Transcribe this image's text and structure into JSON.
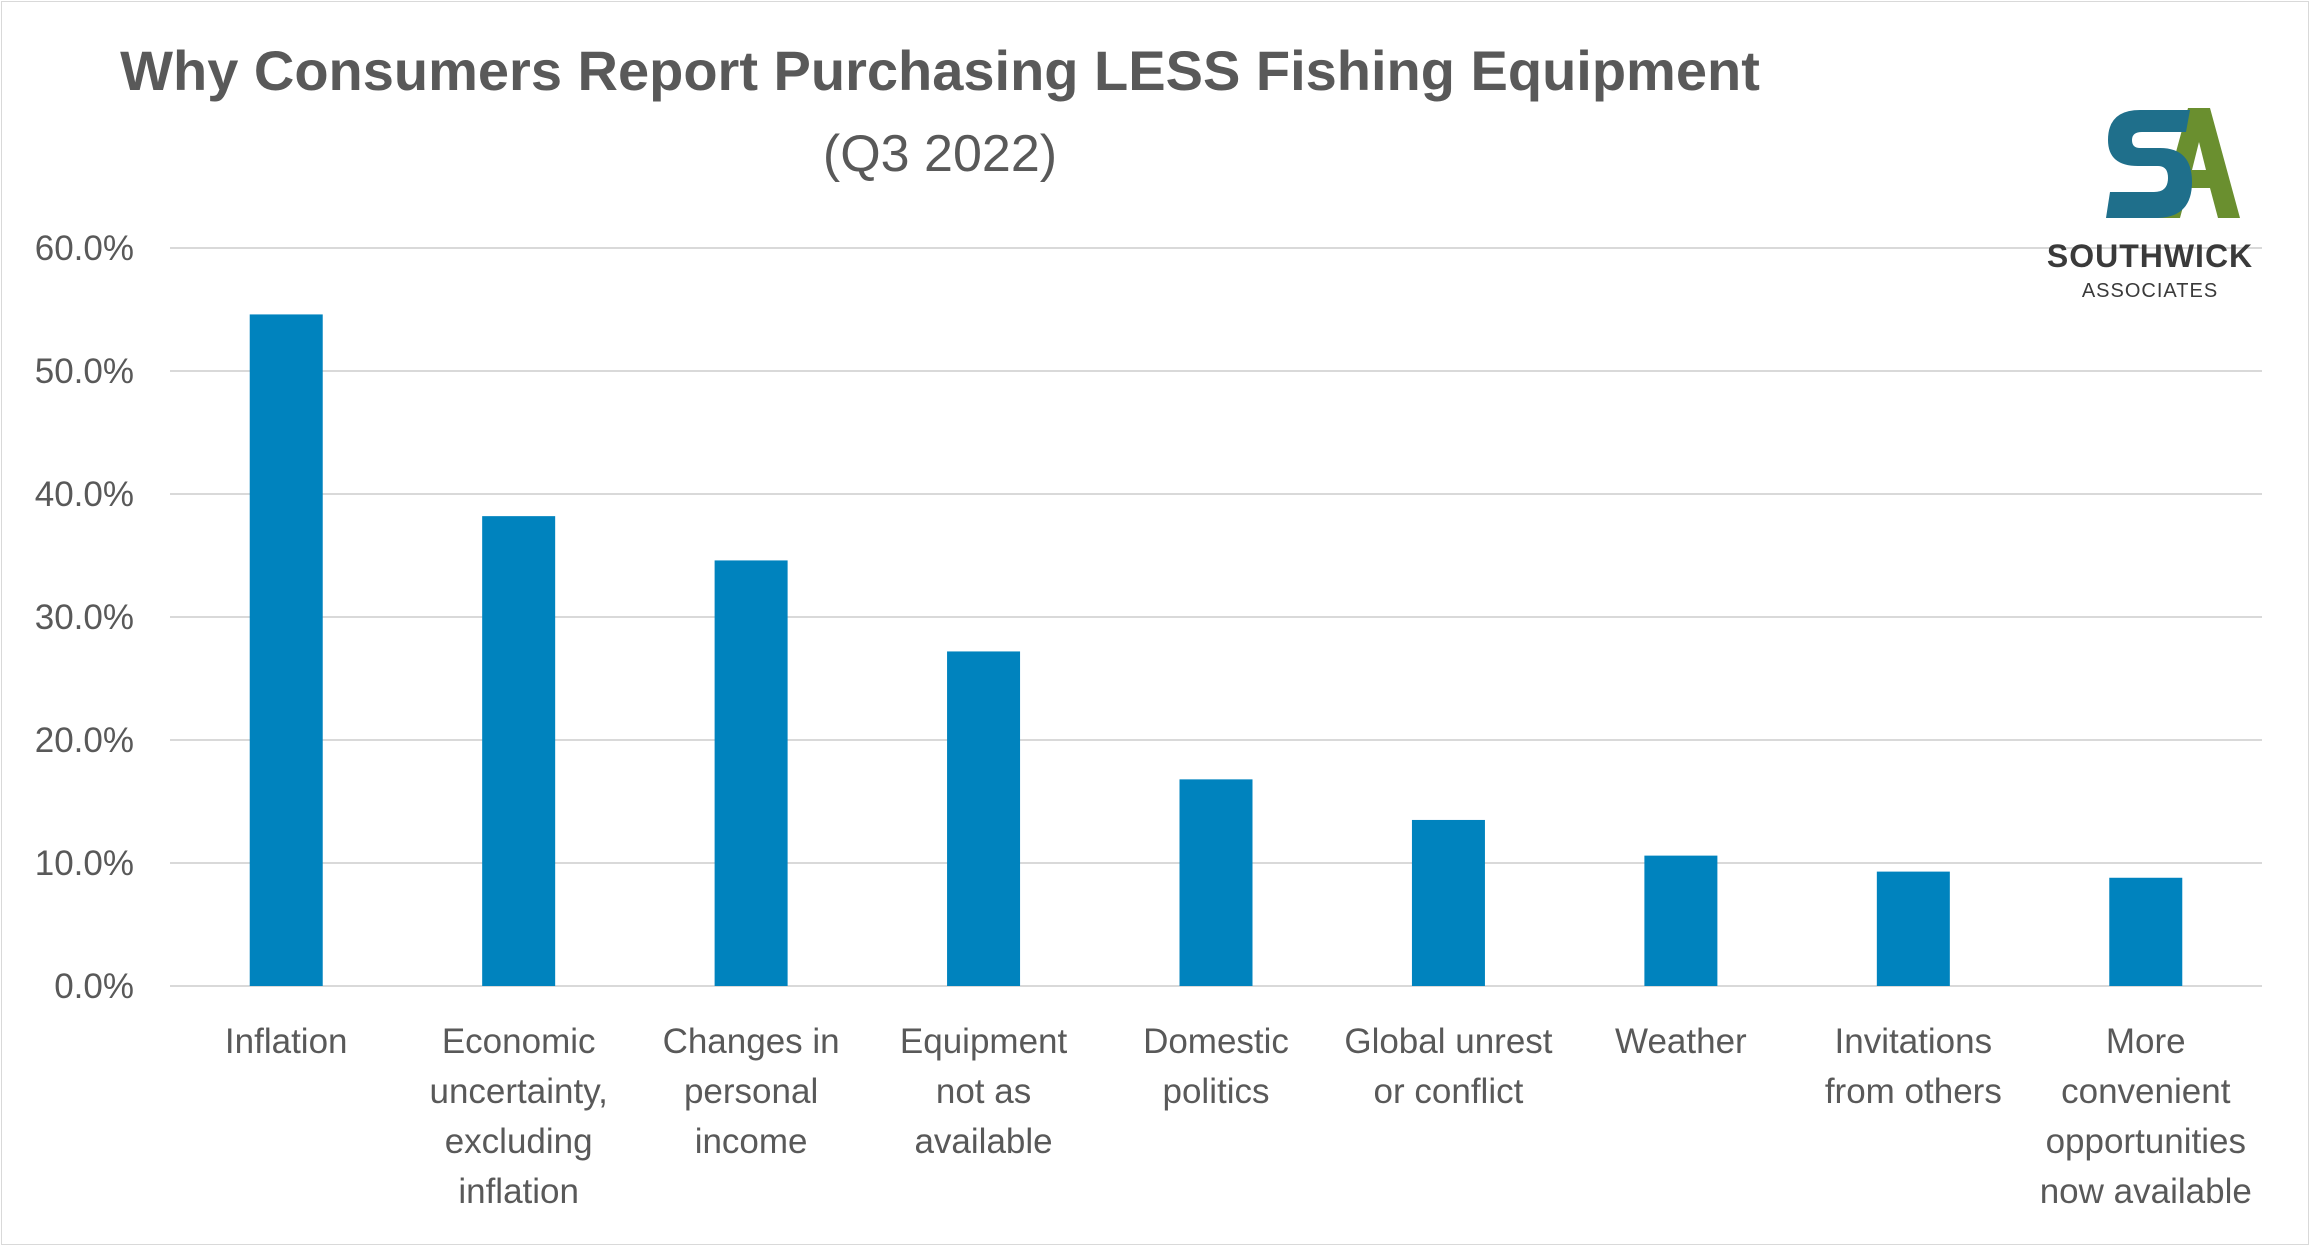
{
  "chart_data": {
    "type": "bar",
    "title": "Why Consumers Report Purchasing LESS Fishing Equipment",
    "subtitle": "(Q3 2022)",
    "categories": [
      [
        "Inflation"
      ],
      [
        "Economic",
        "uncertainty,",
        "excluding",
        "inflation"
      ],
      [
        "Changes in",
        "personal",
        "income"
      ],
      [
        "Equipment",
        "not as",
        "available"
      ],
      [
        "Domestic",
        "politics"
      ],
      [
        "Global unrest",
        "or conflict"
      ],
      [
        "Weather"
      ],
      [
        "Invitations",
        "from others"
      ],
      [
        "More",
        "convenient",
        "opportunities",
        "now available"
      ]
    ],
    "values": [
      54.6,
      38.2,
      34.6,
      27.2,
      16.8,
      13.5,
      10.6,
      9.3,
      8.8
    ],
    "ylim": [
      0,
      60
    ],
    "yticks": [
      "0.0%",
      "10.0%",
      "20.0%",
      "30.0%",
      "40.0%",
      "50.0%",
      "60.0%"
    ],
    "grid": true,
    "colors": {
      "bar": "#0083BE",
      "grid": "#d9d9d9",
      "text": "#595959"
    }
  },
  "logo": {
    "name": "SOUTHWICK",
    "sub": "ASSOCIATES",
    "colors": {
      "s": "#1f6f8b",
      "a": "#6a8f2f"
    }
  }
}
